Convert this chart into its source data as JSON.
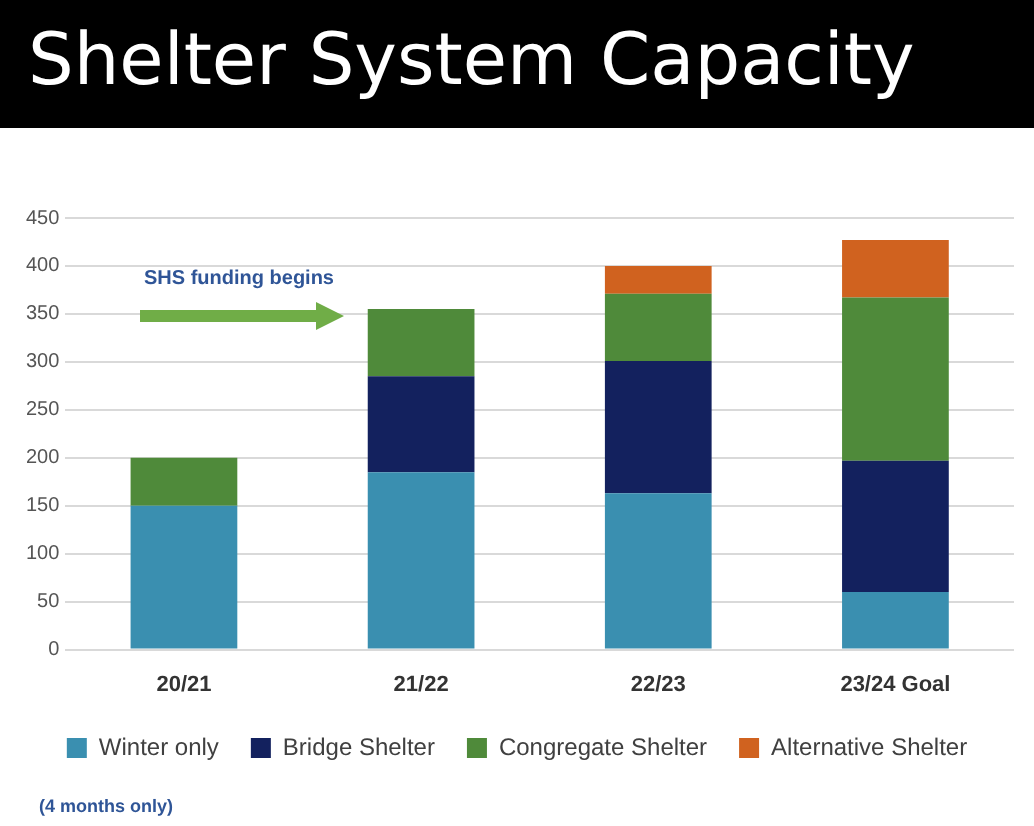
{
  "chart_data": {
    "type": "bar",
    "title": "Shelter System Capacity",
    "categories": [
      "20/21",
      "21/22",
      "22/23",
      "23/24 Goal"
    ],
    "stacked": true,
    "series": [
      {
        "name": "Winter only",
        "color": "#3a8fb0",
        "values": [
          150,
          185,
          163,
          60
        ]
      },
      {
        "name": "Bridge Shelter",
        "color": "#13215e",
        "values": [
          null,
          100,
          138,
          137
        ]
      },
      {
        "name": "Congregate Shelter",
        "color": "#4f8a3a",
        "values": [
          50,
          70,
          70,
          170
        ]
      },
      {
        "name": "Alternative Shelter",
        "color": "#d0621f",
        "values": [
          null,
          null,
          29,
          60
        ]
      }
    ],
    "ylim": [
      0,
      450
    ],
    "yticks": [
      0,
      50,
      100,
      150,
      200,
      250,
      300,
      350,
      400,
      450
    ],
    "grid": "y",
    "legend": "bottom",
    "annotations": [
      "SHS funding begins",
      "(4 months only)"
    ]
  }
}
